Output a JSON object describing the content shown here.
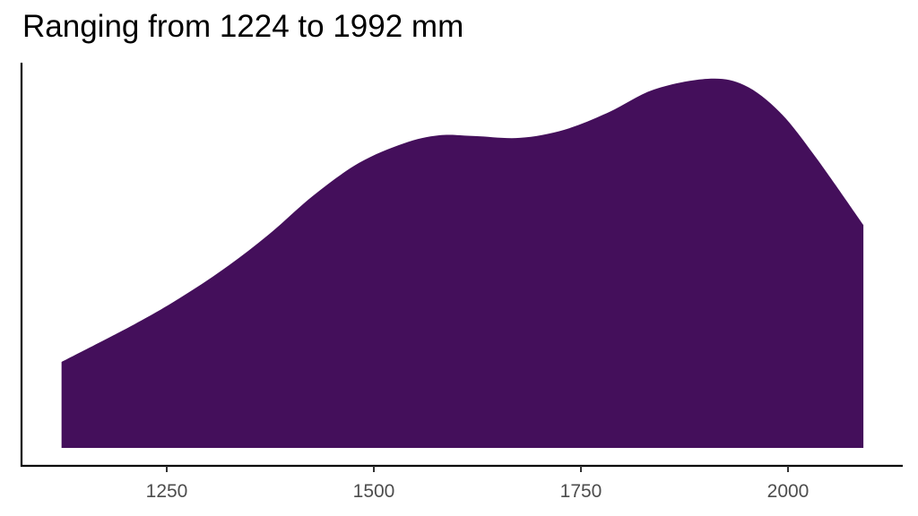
{
  "chart_data": {
    "type": "area",
    "title": "Ranging from 1224 to 1992 mm",
    "xlabel": "",
    "ylabel": "",
    "xlim": [
      1075,
      2135
    ],
    "x_ticks": [
      1250,
      1500,
      1750,
      2000
    ],
    "y_ticks": [],
    "grid": false,
    "legend": null,
    "fill_color": "#440F5B",
    "series": [
      {
        "name": "density",
        "x": [
          1123,
          1211,
          1265,
          1319,
          1373,
          1427,
          1482,
          1536,
          1579,
          1622,
          1676,
          1730,
          1784,
          1838,
          1903,
          1947,
          1990,
          2033,
          2091
        ],
        "y": [
          0.233,
          0.335,
          0.405,
          0.485,
          0.578,
          0.684,
          0.772,
          0.825,
          0.847,
          0.845,
          0.84,
          0.862,
          0.91,
          0.971,
          1.0,
          0.983,
          0.91,
          0.789,
          0.604
        ]
      }
    ]
  }
}
